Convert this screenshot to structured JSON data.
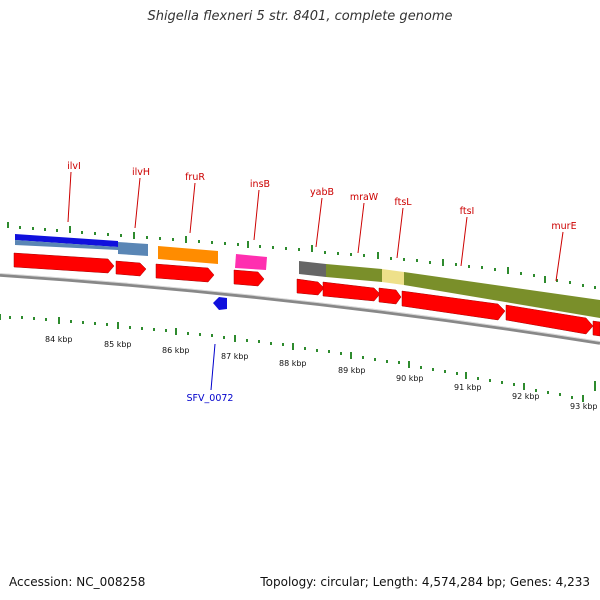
{
  "title": "Shigella flexneri 5 str. 8401, complete genome",
  "footer": {
    "accession": "Accession: NC_008258",
    "stats": "Topology: circular; Length: 4,574,284 bp; Genes: 4,233"
  },
  "colors": {
    "backbone": "#8a8a8a",
    "tick": "#2e8b2e",
    "gene_label": "#cc0000",
    "locus_label": "#0000cc",
    "cds": "#ff0000",
    "blue": "#1010dd",
    "steel_blue": "#5a86b5",
    "orange": "#ff8c00",
    "pink": "#ff2fb0",
    "gray": "#666666",
    "olive": "#7a8f2a",
    "pale_yellow": "#eee08a"
  },
  "scale_labels": [
    "84 kbp",
    "85 kbp",
    "86 kbp",
    "87 kbp",
    "88 kbp",
    "89 kbp",
    "90 kbp",
    "91 kbp",
    "92 kbp",
    "93 kbp"
  ],
  "gene_labels": [
    "ilvI",
    "ilvH",
    "fruR",
    "insB",
    "yabB",
    "mraW",
    "ftsL",
    "ftsI",
    "murE"
  ],
  "locus_labels": [
    "SFV_0072"
  ]
}
